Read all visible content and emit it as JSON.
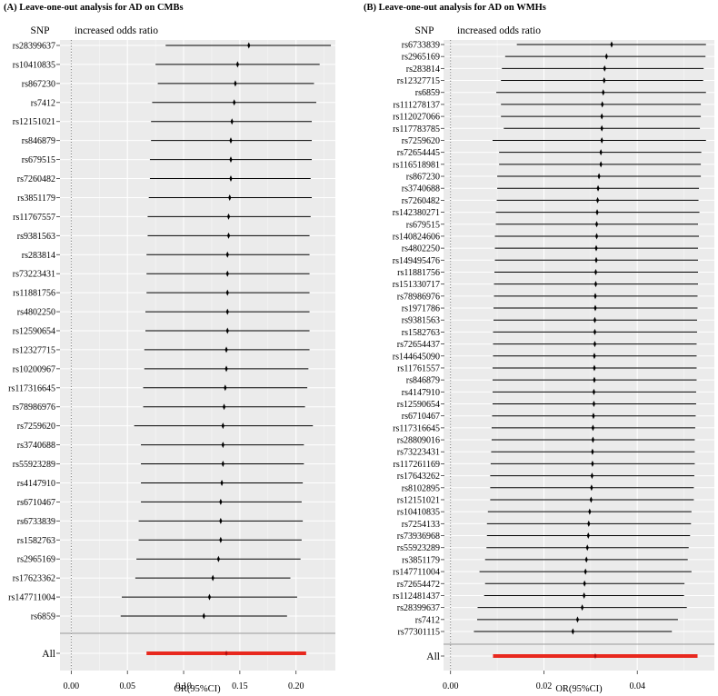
{
  "chart_data": [
    {
      "type": "forest",
      "title": "(A) Leave-one-out analysis for AD on CMBs",
      "column_header": "SNP",
      "effect_header": "increased odds ratio",
      "xlabel": "OR(95%CI)",
      "xlim": [
        -0.01,
        0.235
      ],
      "xticks": [
        "0.00",
        "0.05",
        "0.10",
        "0.15",
        "0.20"
      ],
      "tick_values": [
        0,
        0.05,
        0.1,
        0.15,
        0.2
      ],
      "reference_line": 0,
      "points": [
        {
          "snp": "rs28399637",
          "or": 0.158,
          "lo": 0.084,
          "hi": 0.231
        },
        {
          "snp": "rs10410835",
          "or": 0.148,
          "lo": 0.075,
          "hi": 0.221
        },
        {
          "snp": "rs867230",
          "or": 0.146,
          "lo": 0.077,
          "hi": 0.216
        },
        {
          "snp": "rs7412",
          "or": 0.145,
          "lo": 0.072,
          "hi": 0.218
        },
        {
          "snp": "rs12151021",
          "or": 0.143,
          "lo": 0.071,
          "hi": 0.214
        },
        {
          "snp": "rs846879",
          "or": 0.142,
          "lo": 0.071,
          "hi": 0.214
        },
        {
          "snp": "rs679515",
          "or": 0.142,
          "lo": 0.07,
          "hi": 0.214
        },
        {
          "snp": "rs7260482",
          "or": 0.142,
          "lo": 0.07,
          "hi": 0.213
        },
        {
          "snp": "rs3851179",
          "or": 0.141,
          "lo": 0.069,
          "hi": 0.214
        },
        {
          "snp": "rs11767557",
          "or": 0.14,
          "lo": 0.068,
          "hi": 0.213
        },
        {
          "snp": "rs9381563",
          "or": 0.14,
          "lo": 0.068,
          "hi": 0.212
        },
        {
          "snp": "rs283814",
          "or": 0.139,
          "lo": 0.067,
          "hi": 0.212
        },
        {
          "snp": "rs73223431",
          "or": 0.139,
          "lo": 0.067,
          "hi": 0.212
        },
        {
          "snp": "rs11881756",
          "or": 0.139,
          "lo": 0.067,
          "hi": 0.212
        },
        {
          "snp": "rs4802250",
          "or": 0.139,
          "lo": 0.066,
          "hi": 0.212
        },
        {
          "snp": "rs12590654",
          "or": 0.139,
          "lo": 0.066,
          "hi": 0.212
        },
        {
          "snp": "rs12327715",
          "or": 0.138,
          "lo": 0.065,
          "hi": 0.212
        },
        {
          "snp": "rs10200967",
          "or": 0.138,
          "lo": 0.065,
          "hi": 0.211
        },
        {
          "snp": "rs117316645",
          "or": 0.137,
          "lo": 0.064,
          "hi": 0.21
        },
        {
          "snp": "rs78986976",
          "or": 0.136,
          "lo": 0.064,
          "hi": 0.208
        },
        {
          "snp": "rs7259620",
          "or": 0.135,
          "lo": 0.056,
          "hi": 0.215
        },
        {
          "snp": "rs3740688",
          "or": 0.135,
          "lo": 0.062,
          "hi": 0.207
        },
        {
          "snp": "rs55923289",
          "or": 0.135,
          "lo": 0.062,
          "hi": 0.207
        },
        {
          "snp": "rs4147910",
          "or": 0.134,
          "lo": 0.062,
          "hi": 0.206
        },
        {
          "snp": "rs6710467",
          "or": 0.133,
          "lo": 0.062,
          "hi": 0.205
        },
        {
          "snp": "rs6733839",
          "or": 0.133,
          "lo": 0.06,
          "hi": 0.206
        },
        {
          "snp": "rs1582763",
          "or": 0.133,
          "lo": 0.06,
          "hi": 0.205
        },
        {
          "snp": "rs2965169",
          "or": 0.131,
          "lo": 0.058,
          "hi": 0.204
        },
        {
          "snp": "rs17623362",
          "or": 0.126,
          "lo": 0.057,
          "hi": 0.195
        },
        {
          "snp": "rs147711004",
          "or": 0.123,
          "lo": 0.045,
          "hi": 0.201
        },
        {
          "snp": "rs6859",
          "or": 0.118,
          "lo": 0.044,
          "hi": 0.192
        }
      ],
      "overall": {
        "label": "All",
        "or": 0.138,
        "lo": 0.067,
        "hi": 0.209
      }
    },
    {
      "type": "forest",
      "title": "(B) Leave-one-out analysis for AD on WMHs",
      "column_header": "SNP",
      "effect_header": "increased odds ratio",
      "xlabel": "OR(95%CI)",
      "xlim": [
        -0.0015,
        0.0565
      ],
      "xticks": [
        "0.00",
        "0.02",
        "0.04"
      ],
      "tick_values": [
        0,
        0.02,
        0.04
      ],
      "reference_line": 0,
      "points": [
        {
          "snp": "rs6733839",
          "or": 0.0345,
          "lo": 0.0142,
          "hi": 0.0547
        },
        {
          "snp": "rs2965169",
          "or": 0.0334,
          "lo": 0.0117,
          "hi": 0.0546
        },
        {
          "snp": "rs283814",
          "or": 0.033,
          "lo": 0.011,
          "hi": 0.0542
        },
        {
          "snp": "rs12327715",
          "or": 0.0329,
          "lo": 0.0108,
          "hi": 0.0541
        },
        {
          "snp": "rs6859",
          "or": 0.0327,
          "lo": 0.0098,
          "hi": 0.0547
        },
        {
          "snp": "rs111278137",
          "or": 0.0325,
          "lo": 0.0108,
          "hi": 0.0536
        },
        {
          "snp": "rs112027066",
          "or": 0.0324,
          "lo": 0.0108,
          "hi": 0.0536
        },
        {
          "snp": "rs117783785",
          "or": 0.0324,
          "lo": 0.0114,
          "hi": 0.0534
        },
        {
          "snp": "rs7259620",
          "or": 0.0324,
          "lo": 0.009,
          "hi": 0.0547
        },
        {
          "snp": "rs72654445",
          "or": 0.0322,
          "lo": 0.0104,
          "hi": 0.0537
        },
        {
          "snp": "rs116518981",
          "or": 0.0322,
          "lo": 0.0104,
          "hi": 0.0536
        },
        {
          "snp": "rs867230",
          "or": 0.0318,
          "lo": 0.01,
          "hi": 0.0536
        },
        {
          "snp": "rs3740688",
          "or": 0.0316,
          "lo": 0.01,
          "hi": 0.0532
        },
        {
          "snp": "rs7260482",
          "or": 0.0315,
          "lo": 0.0099,
          "hi": 0.0531
        },
        {
          "snp": "rs142380271",
          "or": 0.0314,
          "lo": 0.0097,
          "hi": 0.0533
        },
        {
          "snp": "rs679515",
          "or": 0.0313,
          "lo": 0.0097,
          "hi": 0.053
        },
        {
          "snp": "rs140824606",
          "or": 0.0313,
          "lo": 0.0095,
          "hi": 0.0532
        },
        {
          "snp": "rs4802250",
          "or": 0.0312,
          "lo": 0.0095,
          "hi": 0.053
        },
        {
          "snp": "rs149495476",
          "or": 0.0312,
          "lo": 0.0095,
          "hi": 0.053
        },
        {
          "snp": "rs11881756",
          "or": 0.0311,
          "lo": 0.0094,
          "hi": 0.053
        },
        {
          "snp": "rs151330717",
          "or": 0.0311,
          "lo": 0.0093,
          "hi": 0.053
        },
        {
          "snp": "rs78986976",
          "or": 0.031,
          "lo": 0.0093,
          "hi": 0.0529
        },
        {
          "snp": "rs1971786",
          "or": 0.031,
          "lo": 0.0092,
          "hi": 0.0529
        },
        {
          "snp": "rs9381563",
          "or": 0.0309,
          "lo": 0.0092,
          "hi": 0.0528
        },
        {
          "snp": "rs1582763",
          "or": 0.0309,
          "lo": 0.0091,
          "hi": 0.0528
        },
        {
          "snp": "rs72654437",
          "or": 0.0309,
          "lo": 0.0091,
          "hi": 0.0527
        },
        {
          "snp": "rs144645090",
          "or": 0.0308,
          "lo": 0.0091,
          "hi": 0.0527
        },
        {
          "snp": "rs11761557",
          "or": 0.0308,
          "lo": 0.009,
          "hi": 0.0527
        },
        {
          "snp": "rs846879",
          "or": 0.0308,
          "lo": 0.009,
          "hi": 0.0527
        },
        {
          "snp": "rs4147910",
          "or": 0.0307,
          "lo": 0.009,
          "hi": 0.0526
        },
        {
          "snp": "rs12590654",
          "or": 0.0307,
          "lo": 0.009,
          "hi": 0.0526
        },
        {
          "snp": "rs6710467",
          "or": 0.0306,
          "lo": 0.0089,
          "hi": 0.0525
        },
        {
          "snp": "rs117316645",
          "or": 0.0305,
          "lo": 0.0088,
          "hi": 0.0524
        },
        {
          "snp": "rs28809016",
          "or": 0.0305,
          "lo": 0.0088,
          "hi": 0.0523
        },
        {
          "snp": "rs73223431",
          "or": 0.0304,
          "lo": 0.0087,
          "hi": 0.0523
        },
        {
          "snp": "rs117261169",
          "or": 0.0304,
          "lo": 0.0086,
          "hi": 0.0523
        },
        {
          "snp": "rs17643262",
          "or": 0.0303,
          "lo": 0.0085,
          "hi": 0.0522
        },
        {
          "snp": "rs8102895",
          "or": 0.0302,
          "lo": 0.0085,
          "hi": 0.0521
        },
        {
          "snp": "rs12151021",
          "or": 0.0301,
          "lo": 0.0085,
          "hi": 0.0521
        },
        {
          "snp": "rs10410835",
          "or": 0.0298,
          "lo": 0.008,
          "hi": 0.0516
        },
        {
          "snp": "rs7254133",
          "or": 0.0296,
          "lo": 0.0078,
          "hi": 0.0515
        },
        {
          "snp": "rs73936968",
          "or": 0.0295,
          "lo": 0.0078,
          "hi": 0.0513
        },
        {
          "snp": "rs55923289",
          "or": 0.0293,
          "lo": 0.0077,
          "hi": 0.051
        },
        {
          "snp": "rs3851179",
          "or": 0.0291,
          "lo": 0.0074,
          "hi": 0.0508
        },
        {
          "snp": "rs147711004",
          "or": 0.0289,
          "lo": 0.0062,
          "hi": 0.0516
        },
        {
          "snp": "rs72654472",
          "or": 0.0287,
          "lo": 0.0074,
          "hi": 0.0501
        },
        {
          "snp": "rs112481437",
          "or": 0.0286,
          "lo": 0.0072,
          "hi": 0.05
        },
        {
          "snp": "rs28399637",
          "or": 0.0282,
          "lo": 0.0058,
          "hi": 0.0506
        },
        {
          "snp": "rs7412",
          "or": 0.0272,
          "lo": 0.0057,
          "hi": 0.0487
        },
        {
          "snp": "rs77301115",
          "or": 0.0262,
          "lo": 0.005,
          "hi": 0.0474
        }
      ],
      "overall": {
        "label": "All",
        "or": 0.031,
        "lo": 0.0091,
        "hi": 0.0529
      }
    }
  ]
}
